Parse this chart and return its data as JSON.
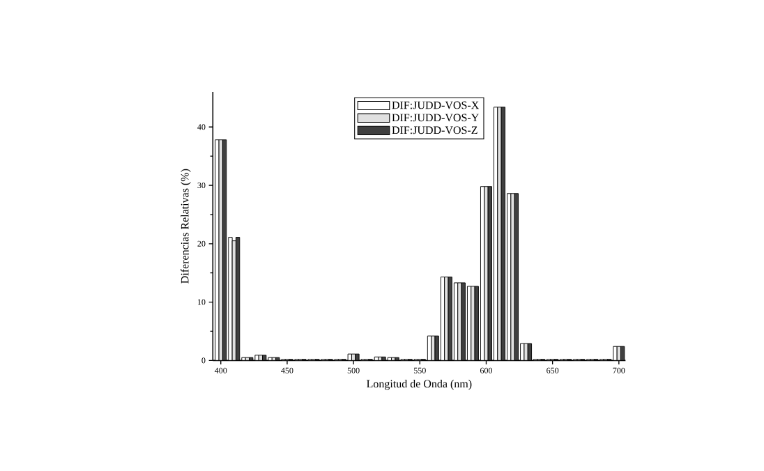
{
  "chart_data": {
    "type": "bar",
    "xlabel": "Longitud de Onda (nm)",
    "ylabel": "Diferencias Relativas (%)",
    "x": [
      400,
      410,
      420,
      430,
      440,
      450,
      460,
      470,
      480,
      490,
      500,
      510,
      520,
      530,
      540,
      550,
      560,
      570,
      580,
      590,
      600,
      610,
      620,
      630,
      640,
      650,
      660,
      670,
      680,
      690,
      700
    ],
    "series": [
      {
        "name": "DIF:JUDD-VOS-X",
        "color": "#ffffff",
        "values": [
          37.8,
          21.1,
          0.5,
          0.9,
          0.5,
          0.2,
          0.2,
          0.2,
          0.2,
          0.2,
          1.1,
          0.2,
          0.6,
          0.5,
          0.2,
          0.2,
          4.2,
          14.3,
          13.3,
          12.7,
          29.8,
          43.4,
          28.6,
          2.9,
          0.2,
          0.2,
          0.2,
          0.2,
          0.2,
          0.2,
          2.4
        ]
      },
      {
        "name": "DIF:JUDD-VOS-Y",
        "color": "#e0e0e0",
        "values": [
          37.8,
          20.5,
          0.5,
          0.9,
          0.5,
          0.2,
          0.2,
          0.2,
          0.2,
          0.2,
          1.1,
          0.2,
          0.6,
          0.5,
          0.2,
          0.2,
          4.2,
          14.3,
          13.3,
          12.7,
          29.8,
          43.4,
          28.6,
          2.9,
          0.2,
          0.2,
          0.2,
          0.2,
          0.2,
          0.2,
          2.4
        ]
      },
      {
        "name": "DIF:JUDD-VOS-Z",
        "color": "#404040",
        "values": [
          37.8,
          21.1,
          0.5,
          0.9,
          0.5,
          0.2,
          0.2,
          0.2,
          0.2,
          0.2,
          1.1,
          0.2,
          0.6,
          0.5,
          0.2,
          0.2,
          4.2,
          14.3,
          13.3,
          12.7,
          29.8,
          43.4,
          28.6,
          2.9,
          0.2,
          0.2,
          0.2,
          0.2,
          0.2,
          0.2,
          2.4
        ]
      }
    ],
    "xlim": [
      394,
      705
    ],
    "xticks": [
      400,
      450,
      500,
      550,
      600,
      650,
      700
    ],
    "ylim": [
      0,
      46
    ],
    "yticks": [
      0,
      10,
      20,
      30,
      40
    ],
    "grid": false,
    "legend": "top"
  }
}
